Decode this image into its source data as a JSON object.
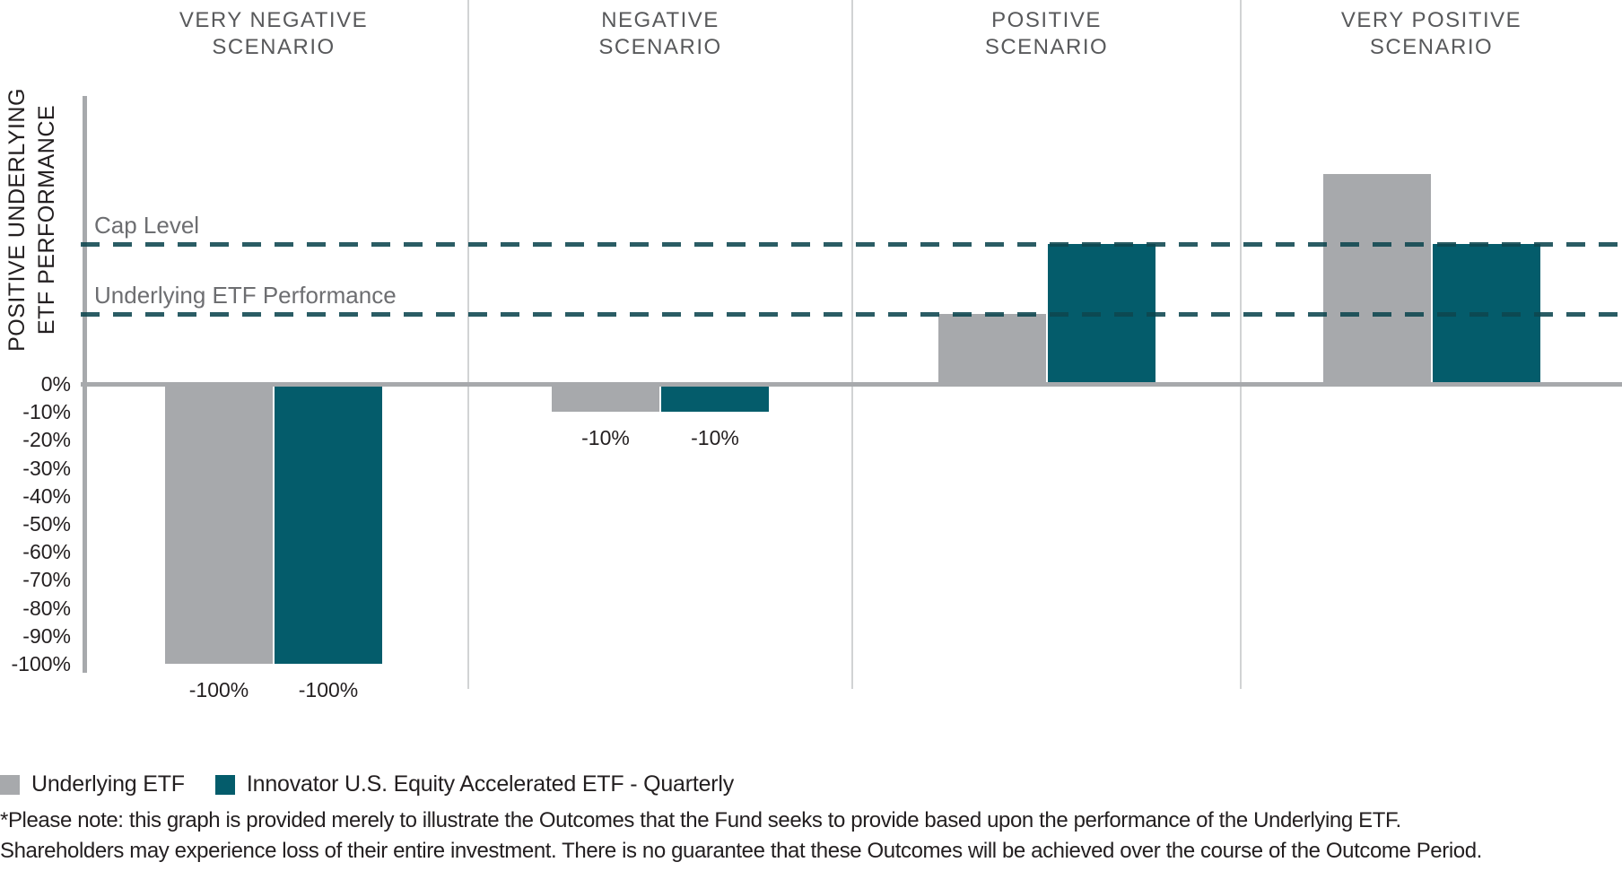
{
  "chart_data": {
    "type": "bar",
    "title": "",
    "categories": [
      "VERY NEGATIVE SCENARIO",
      "NEGATIVE SCENARIO",
      "POSITIVE SCENARIO",
      "VERY POSITIVE SCENARIO"
    ],
    "category_title_lines": [
      [
        "VERY NEGATIVE",
        "SCENARIO"
      ],
      [
        "NEGATIVE",
        "SCENARIO"
      ],
      [
        "POSITIVE",
        "SCENARIO"
      ],
      [
        "VERY POSITIVE",
        "SCENARIO"
      ]
    ],
    "series": [
      {
        "name": "Underlying ETF",
        "color": "#a7a9ac",
        "values_pct": [
          -100,
          -10,
          25,
          75
        ],
        "bar_labels": [
          "-100%",
          "-10%",
          "",
          ""
        ]
      },
      {
        "name": "Innovator U.S. Equity Accelerated ETF - Quarterly",
        "color": "#045c6b",
        "values_pct": [
          -100,
          -10,
          50,
          50
        ],
        "bar_labels": [
          "-100%",
          "-10%",
          "",
          ""
        ]
      }
    ],
    "reference_lines": [
      {
        "label": "Cap Level",
        "value_pct": 50
      },
      {
        "label": "Underlying ETF Performance",
        "value_pct": 25
      }
    ],
    "ylabel_lines": [
      "POSITIVE UNDERLYING",
      "ETF PERFORMANCE"
    ],
    "yticks": [
      "0%",
      "-10%",
      "-20%",
      "-30%",
      "-40%",
      "-50%",
      "-60%",
      "-70%",
      "-80%",
      "-90%",
      "-100%"
    ],
    "ytick_step_pct": -10,
    "ylim_pct": [
      -100,
      80
    ],
    "grid": false,
    "legend_position": "bottom-left",
    "positive_bars_unlabeled": true
  },
  "footnote_lines": [
    "*Please note: this graph is provided merely to illustrate the Outcomes that the Fund seeks to provide based upon the performance of the Underlying ETF.",
    "Shareholders may experience loss of their entire investment. There is no guarantee that these Outcomes will be achieved over the course of the Outcome Period."
  ],
  "colors": {
    "underlying_gray": "#a7a9ac",
    "fund_teal": "#045c6b",
    "dash_teal_rgba": "rgba(13,70,79,0.88)",
    "axis_gray": "#a7a9ac",
    "divider_gray": "#d1d3d4",
    "header_text": "#58595b",
    "ref_label_text": "#6d6e71",
    "text_dark": "#231f20",
    "background": "#ffffff"
  }
}
